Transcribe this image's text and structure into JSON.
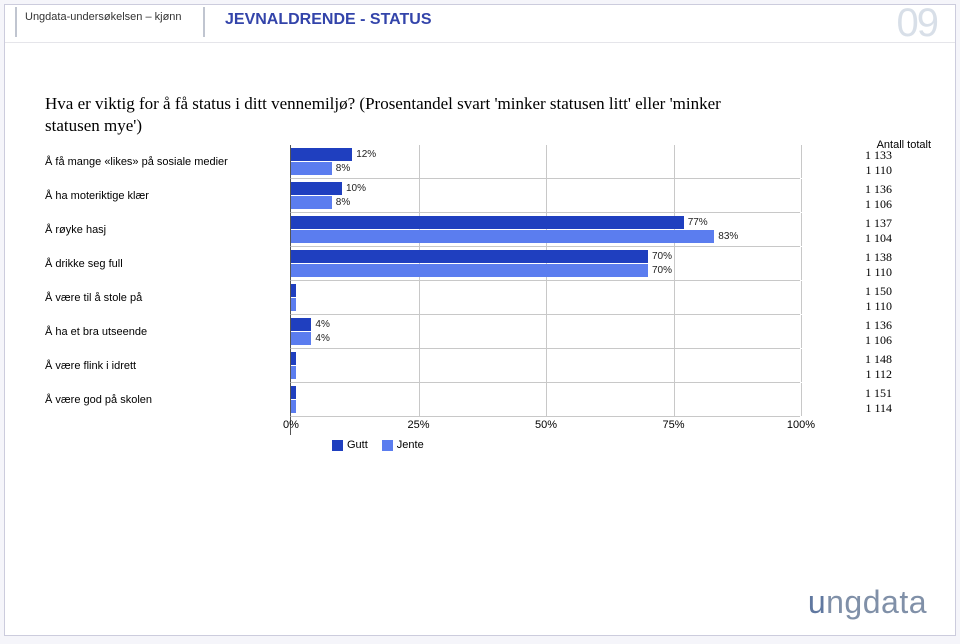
{
  "header": {
    "survey_label": "Ungdata-undersøkelsen – kjønn",
    "title": "JEVNALDRENDE - STATUS",
    "slide_number": "09"
  },
  "question": "Hva er viktig for å få status i ditt vennemiljø? (Prosentandel svart 'minker statusen litt' eller 'minker statusen mye')",
  "count_header": "Antall totalt",
  "chart": {
    "type": "bar",
    "orientation": "horizontal",
    "grouped": true,
    "series": [
      {
        "name": "Gutt",
        "color": "#1f3fbf"
      },
      {
        "name": "Jente",
        "color": "#5b7def"
      }
    ],
    "x_axis": {
      "min": 0,
      "max": 100,
      "ticks": [
        0,
        25,
        50,
        75,
        100
      ],
      "tick_labels": [
        "0%",
        "25%",
        "50%",
        "75%",
        "100%"
      ]
    },
    "grid_color": "#c8c8c8",
    "label_fontsize": 11,
    "value_label_fontsize": 10,
    "value_label_threshold": 3,
    "items": [
      {
        "label": "Å få mange «likes» på sosiale medier",
        "values": [
          12,
          8
        ],
        "show_value": [
          true,
          true
        ],
        "counts": [
          "1 133",
          "1 110"
        ]
      },
      {
        "label": "Å ha moteriktige klær",
        "values": [
          10,
          8
        ],
        "show_value": [
          true,
          true
        ],
        "counts": [
          "1 136",
          "1 106"
        ]
      },
      {
        "label": "Å røyke hasj",
        "values": [
          77,
          83
        ],
        "show_value": [
          true,
          true
        ],
        "counts": [
          "1 137",
          "1 104"
        ]
      },
      {
        "label": "Å drikke seg full",
        "values": [
          70,
          70
        ],
        "show_value": [
          true,
          true
        ],
        "counts": [
          "1 138",
          "1 110"
        ]
      },
      {
        "label": "Å være til å stole på",
        "values": [
          1,
          1
        ],
        "show_value": [
          false,
          false
        ],
        "counts": [
          "1 150",
          "1 110"
        ]
      },
      {
        "label": "Å ha et bra utseende",
        "values": [
          4,
          4
        ],
        "show_value": [
          true,
          true
        ],
        "counts": [
          "1 136",
          "1 106"
        ]
      },
      {
        "label": "Å være flink i idrett",
        "values": [
          1,
          1
        ],
        "show_value": [
          false,
          false
        ],
        "counts": [
          "1 148",
          "1 112"
        ]
      },
      {
        "label": "Å være god på skolen",
        "values": [
          1,
          1
        ],
        "show_value": [
          false,
          false
        ],
        "counts": [
          "1 151",
          "1 114"
        ]
      }
    ]
  },
  "logo": "ungdata"
}
